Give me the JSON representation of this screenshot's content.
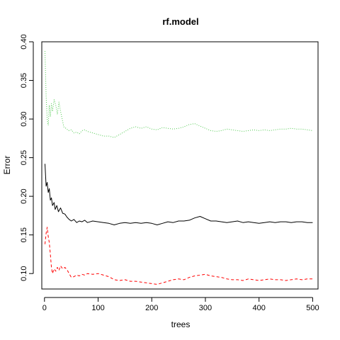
{
  "chart_data": {
    "type": "line",
    "title": "rf.model",
    "xlabel": "trees",
    "ylabel": "Error",
    "xlim": [
      -5,
      510
    ],
    "ylim": [
      0.08,
      0.4
    ],
    "x_ticks": [
      0,
      100,
      200,
      300,
      400,
      500
    ],
    "y_ticks": [
      0.1,
      0.15,
      0.2,
      0.25,
      0.3,
      0.35,
      0.4
    ],
    "grid": false,
    "legend": "none",
    "series": [
      {
        "color": "#000000",
        "line_style": "solid",
        "points": [
          [
            1,
            0.242
          ],
          [
            3,
            0.213
          ],
          [
            5,
            0.218
          ],
          [
            7,
            0.205
          ],
          [
            9,
            0.21
          ],
          [
            11,
            0.195
          ],
          [
            13,
            0.198
          ],
          [
            15,
            0.188
          ],
          [
            18,
            0.192
          ],
          [
            20,
            0.183
          ],
          [
            23,
            0.188
          ],
          [
            26,
            0.18
          ],
          [
            30,
            0.185
          ],
          [
            34,
            0.178
          ],
          [
            38,
            0.177
          ],
          [
            42,
            0.173
          ],
          [
            46,
            0.17
          ],
          [
            50,
            0.168
          ],
          [
            55,
            0.17
          ],
          [
            60,
            0.166
          ],
          [
            65,
            0.168
          ],
          [
            70,
            0.167
          ],
          [
            75,
            0.169
          ],
          [
            80,
            0.166
          ],
          [
            90,
            0.168
          ],
          [
            100,
            0.167
          ],
          [
            110,
            0.166
          ],
          [
            120,
            0.165
          ],
          [
            130,
            0.163
          ],
          [
            140,
            0.165
          ],
          [
            150,
            0.166
          ],
          [
            160,
            0.165
          ],
          [
            170,
            0.166
          ],
          [
            180,
            0.165
          ],
          [
            190,
            0.166
          ],
          [
            200,
            0.165
          ],
          [
            210,
            0.163
          ],
          [
            220,
            0.165
          ],
          [
            230,
            0.167
          ],
          [
            240,
            0.166
          ],
          [
            250,
            0.168
          ],
          [
            260,
            0.168
          ],
          [
            270,
            0.169
          ],
          [
            280,
            0.172
          ],
          [
            290,
            0.174
          ],
          [
            300,
            0.171
          ],
          [
            310,
            0.168
          ],
          [
            320,
            0.168
          ],
          [
            330,
            0.167
          ],
          [
            340,
            0.166
          ],
          [
            350,
            0.167
          ],
          [
            360,
            0.168
          ],
          [
            370,
            0.166
          ],
          [
            380,
            0.167
          ],
          [
            390,
            0.166
          ],
          [
            400,
            0.165
          ],
          [
            410,
            0.166
          ],
          [
            420,
            0.167
          ],
          [
            430,
            0.166
          ],
          [
            440,
            0.167
          ],
          [
            450,
            0.167
          ],
          [
            460,
            0.166
          ],
          [
            470,
            0.167
          ],
          [
            480,
            0.167
          ],
          [
            490,
            0.166
          ],
          [
            500,
            0.166
          ]
        ]
      },
      {
        "color": "#ff0000",
        "line_style": "dashed",
        "points": [
          [
            1,
            0.138
          ],
          [
            3,
            0.152
          ],
          [
            5,
            0.16
          ],
          [
            7,
            0.148
          ],
          [
            9,
            0.14
          ],
          [
            11,
            0.125
          ],
          [
            13,
            0.108
          ],
          [
            15,
            0.1
          ],
          [
            18,
            0.106
          ],
          [
            21,
            0.103
          ],
          [
            24,
            0.108
          ],
          [
            27,
            0.104
          ],
          [
            30,
            0.11
          ],
          [
            34,
            0.106
          ],
          [
            38,
            0.108
          ],
          [
            42,
            0.105
          ],
          [
            46,
            0.1
          ],
          [
            50,
            0.095
          ],
          [
            55,
            0.096
          ],
          [
            60,
            0.098
          ],
          [
            65,
            0.097
          ],
          [
            70,
            0.099
          ],
          [
            75,
            0.098
          ],
          [
            80,
            0.1
          ],
          [
            90,
            0.099
          ],
          [
            100,
            0.1
          ],
          [
            110,
            0.098
          ],
          [
            120,
            0.096
          ],
          [
            130,
            0.092
          ],
          [
            140,
            0.091
          ],
          [
            150,
            0.092
          ],
          [
            160,
            0.09
          ],
          [
            170,
            0.09
          ],
          [
            180,
            0.089
          ],
          [
            190,
            0.088
          ],
          [
            200,
            0.087
          ],
          [
            210,
            0.086
          ],
          [
            220,
            0.088
          ],
          [
            230,
            0.09
          ],
          [
            240,
            0.092
          ],
          [
            250,
            0.093
          ],
          [
            260,
            0.092
          ],
          [
            270,
            0.095
          ],
          [
            280,
            0.097
          ],
          [
            290,
            0.098
          ],
          [
            300,
            0.099
          ],
          [
            310,
            0.097
          ],
          [
            320,
            0.096
          ],
          [
            330,
            0.095
          ],
          [
            340,
            0.093
          ],
          [
            350,
            0.092
          ],
          [
            360,
            0.092
          ],
          [
            370,
            0.091
          ],
          [
            380,
            0.093
          ],
          [
            390,
            0.092
          ],
          [
            400,
            0.091
          ],
          [
            410,
            0.092
          ],
          [
            420,
            0.093
          ],
          [
            430,
            0.092
          ],
          [
            440,
            0.092
          ],
          [
            450,
            0.091
          ],
          [
            460,
            0.092
          ],
          [
            470,
            0.093
          ],
          [
            480,
            0.092
          ],
          [
            490,
            0.093
          ],
          [
            500,
            0.093
          ]
        ]
      },
      {
        "color": "#4fc94f",
        "line_style": "dotted",
        "points": [
          [
            1,
            0.388
          ],
          [
            3,
            0.33
          ],
          [
            5,
            0.3
          ],
          [
            7,
            0.292
          ],
          [
            9,
            0.318
          ],
          [
            11,
            0.303
          ],
          [
            13,
            0.32
          ],
          [
            15,
            0.31
          ],
          [
            18,
            0.325
          ],
          [
            21,
            0.318
          ],
          [
            24,
            0.306
          ],
          [
            27,
            0.322
          ],
          [
            30,
            0.31
          ],
          [
            33,
            0.3
          ],
          [
            36,
            0.29
          ],
          [
            40,
            0.288
          ],
          [
            45,
            0.285
          ],
          [
            50,
            0.286
          ],
          [
            55,
            0.282
          ],
          [
            60,
            0.283
          ],
          [
            65,
            0.281
          ],
          [
            70,
            0.285
          ],
          [
            75,
            0.286
          ],
          [
            80,
            0.284
          ],
          [
            90,
            0.282
          ],
          [
            100,
            0.28
          ],
          [
            110,
            0.278
          ],
          [
            120,
            0.278
          ],
          [
            130,
            0.276
          ],
          [
            140,
            0.28
          ],
          [
            150,
            0.284
          ],
          [
            160,
            0.288
          ],
          [
            170,
            0.29
          ],
          [
            180,
            0.288
          ],
          [
            190,
            0.29
          ],
          [
            200,
            0.287
          ],
          [
            210,
            0.286
          ],
          [
            220,
            0.289
          ],
          [
            230,
            0.288
          ],
          [
            240,
            0.287
          ],
          [
            250,
            0.288
          ],
          [
            260,
            0.29
          ],
          [
            270,
            0.293
          ],
          [
            280,
            0.294
          ],
          [
            290,
            0.291
          ],
          [
            300,
            0.288
          ],
          [
            310,
            0.285
          ],
          [
            320,
            0.284
          ],
          [
            330,
            0.285
          ],
          [
            340,
            0.287
          ],
          [
            350,
            0.286
          ],
          [
            360,
            0.285
          ],
          [
            370,
            0.284
          ],
          [
            380,
            0.285
          ],
          [
            390,
            0.286
          ],
          [
            400,
            0.285
          ],
          [
            410,
            0.286
          ],
          [
            420,
            0.285
          ],
          [
            430,
            0.286
          ],
          [
            440,
            0.287
          ],
          [
            450,
            0.287
          ],
          [
            460,
            0.288
          ],
          [
            470,
            0.287
          ],
          [
            480,
            0.287
          ],
          [
            490,
            0.286
          ],
          [
            500,
            0.285
          ]
        ]
      }
    ]
  }
}
